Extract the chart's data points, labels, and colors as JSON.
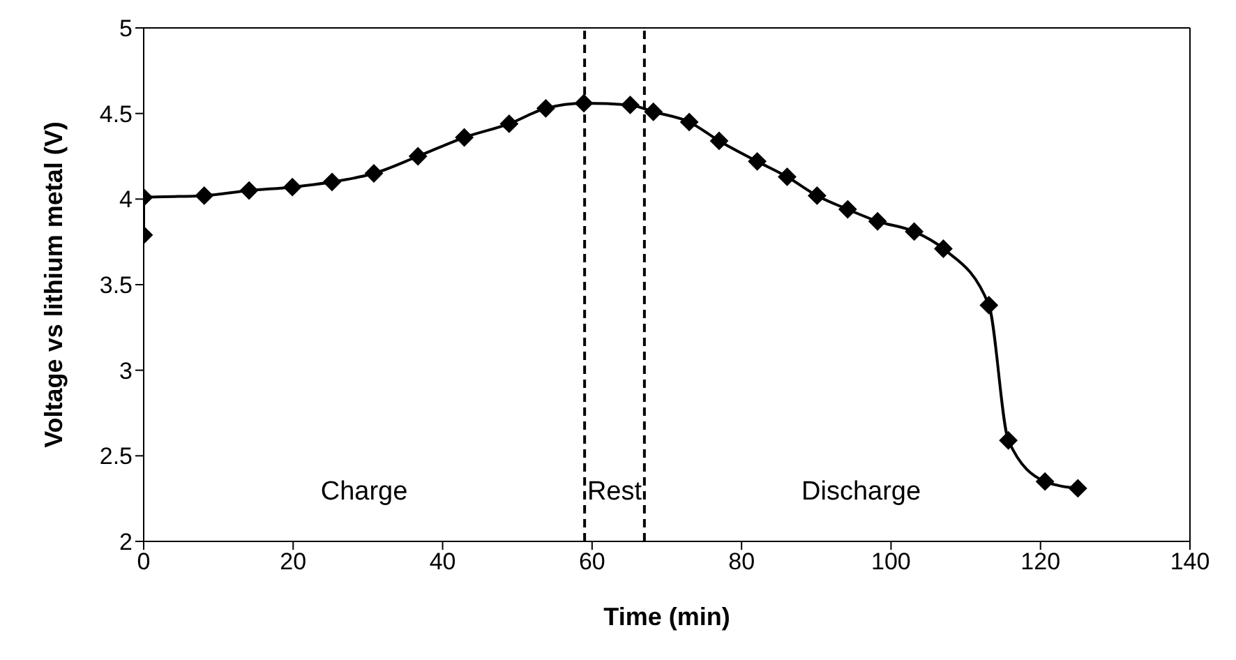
{
  "chart_data": {
    "type": "line",
    "xlabel": "Time (min)",
    "ylabel": "Voltage vs lithium metal (V)",
    "x": [
      0,
      0,
      8.1,
      14.1,
      19.9,
      25.2,
      30.8,
      36.7,
      42.9,
      48.9,
      53.8,
      58.9,
      65.1,
      68.2,
      73.0,
      77.0,
      82.1,
      86.1,
      90.1,
      94.2,
      98.2,
      103.1,
      107.0,
      113.1,
      115.7,
      120.6,
      125.0
    ],
    "series": [
      {
        "color": "#000000",
        "values": [
          3.79,
          4.01,
          4.02,
          4.05,
          4.07,
          4.1,
          4.15,
          4.25,
          4.36,
          4.44,
          4.53,
          4.56,
          4.55,
          4.51,
          4.45,
          4.34,
          4.22,
          4.13,
          4.02,
          3.94,
          3.87,
          3.81,
          3.71,
          3.38,
          2.59,
          2.35,
          2.31
        ]
      }
    ],
    "xlim": [
      0,
      140
    ],
    "xticks": [
      0,
      20,
      40,
      60,
      80,
      100,
      120,
      140
    ],
    "ylim": [
      2,
      5
    ],
    "yticks": [
      2,
      2.5,
      3,
      3.5,
      4,
      4.5,
      5
    ],
    "ref_lines": [
      {
        "axis": "x",
        "value": 59,
        "color": "#000000",
        "line_style": "dashed"
      },
      {
        "axis": "x",
        "value": 67,
        "color": "#000000",
        "line_style": "dashed"
      }
    ],
    "annotations": [
      "Charge",
      "Rest",
      "Discharge"
    ],
    "marker": "diamond",
    "line_style": "solid"
  }
}
